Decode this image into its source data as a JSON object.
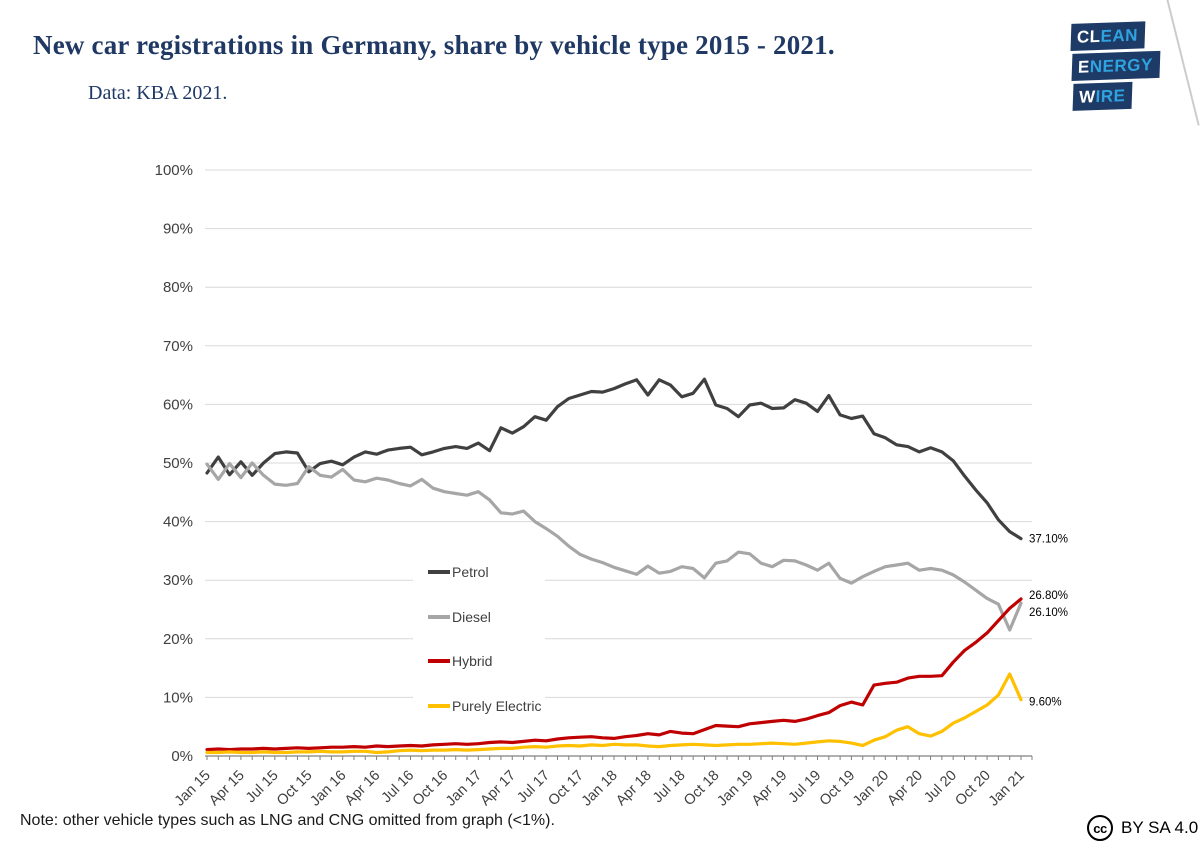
{
  "header": {
    "title": "New car registrations in Germany, share by vehicle type 2015 - 2021.",
    "subtitle": "Data: KBA 2021."
  },
  "logo": {
    "lines": [
      {
        "white": "CL",
        "blue": "EAN"
      },
      {
        "white": "E",
        "blue": "NERGY"
      },
      {
        "white": "W",
        "blue": "IRE"
      }
    ]
  },
  "chart_data": {
    "type": "line",
    "title": "New car registrations in Germany, share by vehicle type 2015 - 2021.",
    "xlabel": "",
    "ylabel": "",
    "ylim": [
      0,
      100
    ],
    "grid": true,
    "legend_position": "inside-left-middle",
    "y_tick_labels": [
      "0%",
      "10%",
      "20%",
      "30%",
      "40%",
      "50%",
      "60%",
      "70%",
      "80%",
      "90%",
      "100%"
    ],
    "x_tick_labels": [
      "Jan 15",
      "Apr 15",
      "Jul 15",
      "Oct 15",
      "Jan 16",
      "Apr 16",
      "Jul 16",
      "Oct 16",
      "Jan 17",
      "Apr 17",
      "Jul 17",
      "Oct 17",
      "Jan 18",
      "Apr 18",
      "Jul 18",
      "Oct 18",
      "Jan 19",
      "Apr 19",
      "Jul 19",
      "Oct 19",
      "Jan 20",
      "Apr 20",
      "Jul 20",
      "Oct 20",
      "Jan 21"
    ],
    "x_label_every_n_months": 3,
    "months_total": 73,
    "series": [
      {
        "name": "Petrol",
        "color": "#404040",
        "end_label": "37.10%",
        "end_label_dy": 0,
        "values": [
          48.3,
          51.0,
          48.0,
          50.2,
          47.9,
          50.0,
          51.6,
          51.9,
          51.7,
          48.5,
          49.9,
          50.3,
          49.7,
          51.0,
          51.9,
          51.5,
          52.2,
          52.5,
          52.7,
          51.4,
          51.9,
          52.5,
          52.8,
          52.5,
          53.4,
          52.1,
          56.0,
          55.1,
          56.2,
          57.9,
          57.3,
          59.6,
          61.0,
          61.6,
          62.2,
          62.1,
          62.7,
          63.5,
          64.2,
          61.6,
          64.2,
          63.3,
          61.3,
          61.9,
          64.3,
          59.9,
          59.3,
          57.9,
          59.9,
          60.2,
          59.3,
          59.4,
          60.8,
          60.2,
          58.8,
          61.5,
          58.2,
          57.6,
          58.0,
          55.0,
          54.3,
          53.1,
          52.8,
          51.9,
          52.6,
          51.9,
          50.4,
          47.8,
          45.4,
          43.2,
          40.3,
          38.3,
          37.1
        ]
      },
      {
        "name": "Diesel",
        "color": "#a6a6a6",
        "end_label": "26.10%",
        "end_label_dy": 9,
        "values": [
          49.8,
          47.2,
          49.9,
          47.5,
          50.0,
          47.9,
          46.4,
          46.2,
          46.5,
          49.4,
          47.9,
          47.6,
          48.9,
          47.1,
          46.8,
          47.4,
          47.1,
          46.5,
          46.1,
          47.2,
          45.7,
          45.1,
          44.8,
          44.5,
          45.1,
          43.7,
          41.5,
          41.3,
          41.8,
          40.0,
          38.8,
          37.5,
          35.8,
          34.4,
          33.6,
          33.0,
          32.2,
          31.6,
          31.0,
          32.4,
          31.2,
          31.5,
          32.3,
          32.0,
          30.4,
          32.9,
          33.3,
          34.8,
          34.5,
          32.9,
          32.3,
          33.4,
          33.3,
          32.6,
          31.7,
          32.9,
          30.3,
          29.5,
          30.6,
          31.5,
          32.3,
          32.6,
          32.9,
          31.7,
          32.0,
          31.7,
          30.9,
          29.7,
          28.3,
          26.9,
          25.9,
          21.5,
          26.1
        ]
      },
      {
        "name": "Hybrid",
        "color": "#c00000",
        "end_label": "26.80%",
        "end_label_dy": -4,
        "values": [
          1.1,
          1.2,
          1.1,
          1.2,
          1.2,
          1.3,
          1.2,
          1.3,
          1.4,
          1.3,
          1.4,
          1.5,
          1.5,
          1.6,
          1.5,
          1.7,
          1.6,
          1.7,
          1.8,
          1.7,
          1.9,
          2.0,
          2.1,
          2.0,
          2.1,
          2.3,
          2.4,
          2.3,
          2.5,
          2.7,
          2.6,
          2.9,
          3.1,
          3.2,
          3.3,
          3.1,
          3.0,
          3.3,
          3.5,
          3.8,
          3.6,
          4.2,
          3.9,
          3.8,
          4.5,
          5.2,
          5.1,
          5.0,
          5.5,
          5.7,
          5.9,
          6.1,
          5.9,
          6.3,
          6.9,
          7.4,
          8.6,
          9.2,
          8.7,
          12.1,
          12.4,
          12.6,
          13.3,
          13.6,
          13.6,
          13.7,
          16.0,
          18.0,
          19.4,
          21.0,
          23.1,
          25.2,
          26.8
        ]
      },
      {
        "name": "Purely Electric",
        "color": "#ffc000",
        "end_label": "9.60%",
        "end_label_dy": 2,
        "values": [
          0.6,
          0.6,
          0.7,
          0.6,
          0.6,
          0.7,
          0.6,
          0.6,
          0.7,
          0.7,
          0.8,
          0.7,
          0.7,
          0.8,
          0.8,
          0.6,
          0.7,
          0.9,
          1.0,
          0.9,
          1.0,
          1.0,
          1.1,
          1.0,
          1.1,
          1.2,
          1.3,
          1.3,
          1.5,
          1.6,
          1.5,
          1.7,
          1.8,
          1.7,
          1.9,
          1.8,
          2.0,
          1.9,
          1.9,
          1.7,
          1.6,
          1.8,
          1.9,
          2.0,
          1.9,
          1.8,
          1.9,
          2.0,
          2.0,
          2.1,
          2.2,
          2.1,
          2.0,
          2.2,
          2.4,
          2.6,
          2.5,
          2.2,
          1.8,
          2.7,
          3.3,
          4.4,
          5.0,
          3.8,
          3.4,
          4.2,
          5.6,
          6.5,
          7.6,
          8.7,
          10.4,
          14.0,
          9.6
        ]
      }
    ],
    "colors": {
      "gridline": "#d9d9d9",
      "axis": "#808080",
      "tick_text": "#404040",
      "end_label_text": "#000000"
    }
  },
  "footer": {
    "note": "Note: other vehicle types such as LNG and CNG omitted from graph (<1%).",
    "cc_symbol": "cc",
    "license": "BY SA 4.0"
  }
}
